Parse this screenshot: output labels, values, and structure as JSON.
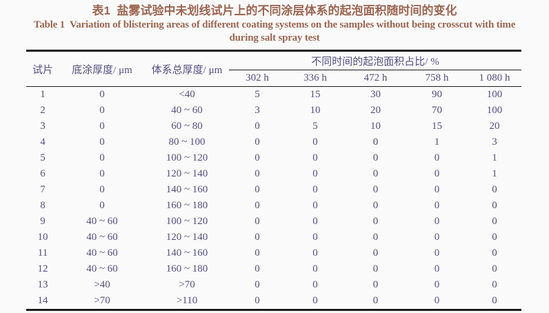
{
  "page": {
    "background": "#fbfafa",
    "title_color": "#9a6752",
    "table_text_color": "#53507e",
    "rule_color": "#1c1c1c"
  },
  "title": {
    "zh": "表1  盐雾试验中未划线试片上的不同涂层体系的起泡面积随时间的变化",
    "en_line1": "Table 1  Variation of blistering areas of different coating systems on the samples without being crosscut with time",
    "en_line2": "during salt spray test"
  },
  "table": {
    "col_headers": {
      "sample": "试片",
      "primer_thickness": "底涂厚度/ μm",
      "total_thickness": "体系总厚度/ μm",
      "blister_group": "不同时间的起泡面积占比/ %"
    },
    "time_headers": [
      "302 h",
      "336 h",
      "472 h",
      "758 h",
      "1 080 h"
    ],
    "rows": [
      [
        "1",
        "0",
        "<40",
        "5",
        "15",
        "30",
        "90",
        "100"
      ],
      [
        "2",
        "0",
        "40 ~ 60",
        "3",
        "10",
        "20",
        "70",
        "100"
      ],
      [
        "3",
        "0",
        "60 ~ 80",
        "0",
        "5",
        "10",
        "15",
        "20"
      ],
      [
        "4",
        "0",
        "80 ~ 100",
        "0",
        "0",
        "0",
        "1",
        "3"
      ],
      [
        "5",
        "0",
        "100 ~ 120",
        "0",
        "0",
        "0",
        "0",
        "1"
      ],
      [
        "6",
        "0",
        "120 ~ 140",
        "0",
        "0",
        "0",
        "0",
        "1"
      ],
      [
        "7",
        "0",
        "140 ~ 160",
        "0",
        "0",
        "0",
        "0",
        "0"
      ],
      [
        "8",
        "0",
        "160 ~ 180",
        "0",
        "0",
        "0",
        "0",
        "0"
      ],
      [
        "9",
        "40 ~ 60",
        "100 ~ 120",
        "0",
        "0",
        "0",
        "0",
        "0"
      ],
      [
        "10",
        "40 ~ 60",
        "120 ~ 140",
        "0",
        "0",
        "0",
        "0",
        "0"
      ],
      [
        "11",
        "40 ~ 60",
        "140 ~ 160",
        "0",
        "0",
        "0",
        "0",
        "0"
      ],
      [
        "12",
        "40 ~ 60",
        "160 ~ 180",
        "0",
        "0",
        "0",
        "0",
        "0"
      ],
      [
        "13",
        ">40",
        ">70",
        "0",
        "0",
        "0",
        "0",
        "0"
      ],
      [
        "14",
        ">70",
        ">110",
        "0",
        "0",
        "0",
        "0",
        "0"
      ]
    ]
  }
}
